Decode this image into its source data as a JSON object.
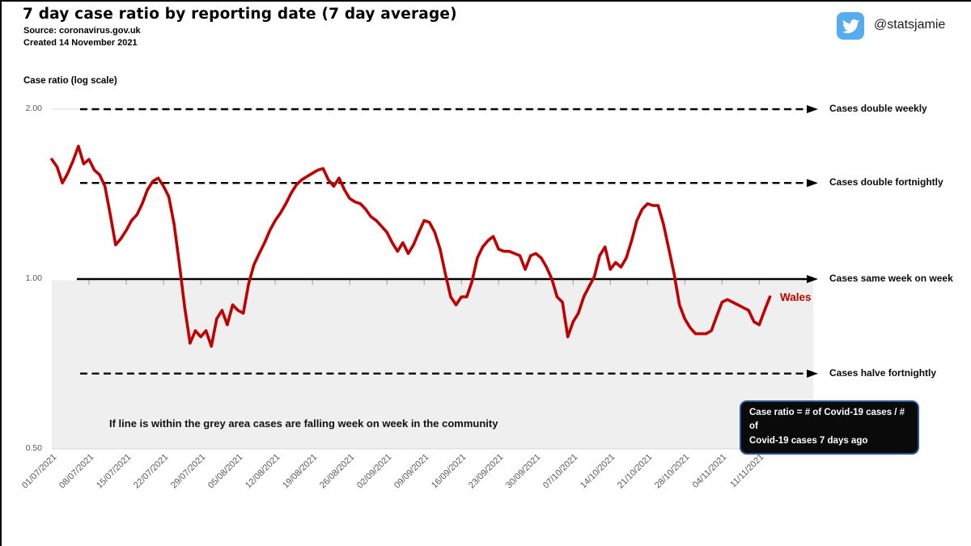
{
  "header": {
    "title": "7 day case ratio by reporting date (7 day average)",
    "source": "Source: coronavirus.gov.uk",
    "created": "Created 14 November 2021",
    "twitter_handle": "@statsjamie"
  },
  "chart": {
    "y_axis_title": "Case ratio (log scale)",
    "series_label": "Wales",
    "annotation": "If line is within the grey area cases are falling week on week in the community",
    "tooltip_line1": "Case ratio = # of Covid-19 cases / # of",
    "tooltip_line2": "Covid-19 cases 7 days ago"
  },
  "colors": {
    "series_red": "#C00000",
    "shaded_area": "#EFEFEF",
    "twitter_blue": "#55ACEE",
    "tooltip_bg": "#0A0A0A",
    "tooltip_border": "#2F5597",
    "axis_text": "#595959",
    "gridline": "#D9D9D9"
  },
  "chart_data": {
    "type": "line",
    "title": "7 day case ratio by reporting date (7 day average)",
    "y_scale": "log",
    "ylim": [
      0.5,
      2.0
    ],
    "y_ticks": [
      2.0,
      1.0,
      0.5
    ],
    "y_tick_labels": [
      "2.00",
      "1.00",
      "0.50"
    ],
    "x_tick_labels": [
      "01/07/2021",
      "08/07/2021",
      "15/07/2021",
      "22/07/2021",
      "29/07/2021",
      "05/08/2021",
      "12/08/2021",
      "19/08/2021",
      "26/08/2021",
      "02/09/2021",
      "09/09/2021",
      "16/09/2021",
      "23/09/2021",
      "30/09/2021",
      "07/10/2021",
      "14/10/2021",
      "21/10/2021",
      "28/10/2021",
      "04/11/2021",
      "11/11/2021"
    ],
    "reference_lines": [
      {
        "label": "Cases double weekly",
        "ratio": 2.0,
        "style": "dashed"
      },
      {
        "label": "Cases double fortnightly",
        "ratio": 1.48,
        "style": "dashed"
      },
      {
        "label": "Cases same week on week",
        "ratio": 1.0,
        "style": "solid"
      },
      {
        "label": "Cases halve fortnightly",
        "ratio": 0.68,
        "style": "dashed"
      }
    ],
    "shaded_region": {
      "from": 0.5,
      "to": 1.0,
      "meaning": "cases falling week on week"
    },
    "series": [
      {
        "name": "Wales",
        "color": "#C00000",
        "start_date": "01/07/2021",
        "frequency": "daily",
        "values": [
          1.63,
          1.58,
          1.48,
          1.54,
          1.62,
          1.72,
          1.6,
          1.63,
          1.56,
          1.53,
          1.46,
          1.3,
          1.15,
          1.18,
          1.22,
          1.27,
          1.3,
          1.36,
          1.44,
          1.49,
          1.51,
          1.46,
          1.4,
          1.25,
          1.06,
          0.89,
          0.77,
          0.81,
          0.79,
          0.81,
          0.76,
          0.85,
          0.88,
          0.83,
          0.9,
          0.88,
          0.87,
          0.98,
          1.06,
          1.11,
          1.16,
          1.22,
          1.27,
          1.31,
          1.36,
          1.42,
          1.47,
          1.5,
          1.52,
          1.54,
          1.56,
          1.57,
          1.5,
          1.46,
          1.51,
          1.44,
          1.39,
          1.37,
          1.36,
          1.33,
          1.29,
          1.27,
          1.24,
          1.21,
          1.16,
          1.12,
          1.16,
          1.11,
          1.15,
          1.21,
          1.27,
          1.26,
          1.21,
          1.13,
          1.02,
          0.93,
          0.9,
          0.93,
          0.93,
          0.99,
          1.09,
          1.14,
          1.17,
          1.19,
          1.13,
          1.12,
          1.12,
          1.11,
          1.1,
          1.04,
          1.1,
          1.11,
          1.09,
          1.05,
          1.0,
          0.93,
          0.91,
          0.79,
          0.84,
          0.87,
          0.93,
          0.97,
          1.01,
          1.1,
          1.14,
          1.04,
          1.07,
          1.05,
          1.09,
          1.17,
          1.27,
          1.33,
          1.36,
          1.35,
          1.35,
          1.25,
          1.13,
          1.02,
          0.9,
          0.85,
          0.82,
          0.8,
          0.8,
          0.8,
          0.81,
          0.86,
          0.91,
          0.92,
          0.91,
          0.9,
          0.89,
          0.88,
          0.84,
          0.83,
          0.88,
          0.93
        ]
      }
    ]
  }
}
